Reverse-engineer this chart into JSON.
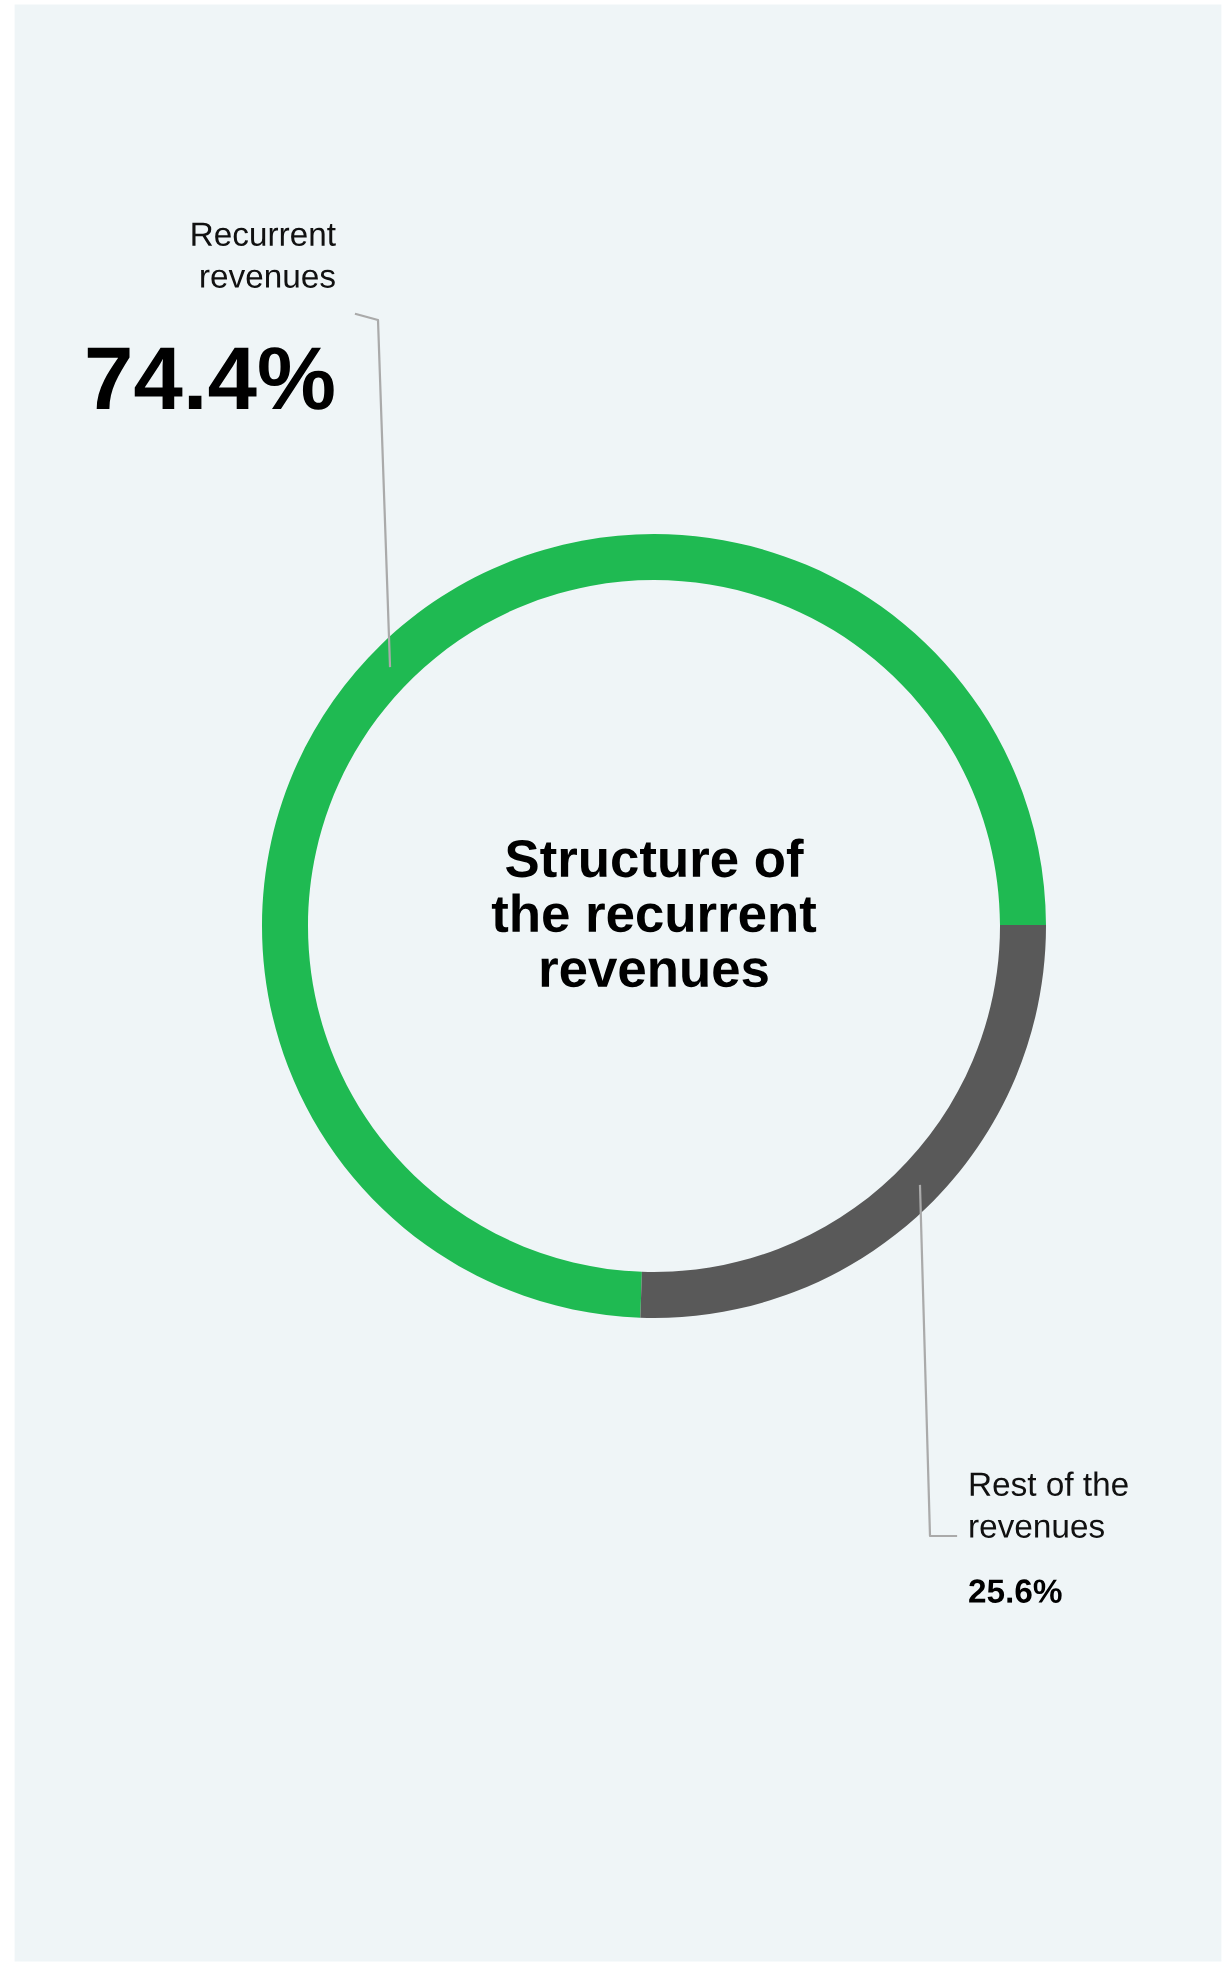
{
  "chart_data": {
    "type": "donut",
    "title": "Structure of\nthe recurrent\nrevenues",
    "categories": [
      "Recurrent\nrevenues",
      "Rest of the\nrevenues"
    ],
    "values": [
      74.4,
      25.6
    ],
    "colors": [
      "#1fba52",
      "#595959"
    ],
    "value_labels": [
      "74.4%",
      "25.6%"
    ]
  }
}
